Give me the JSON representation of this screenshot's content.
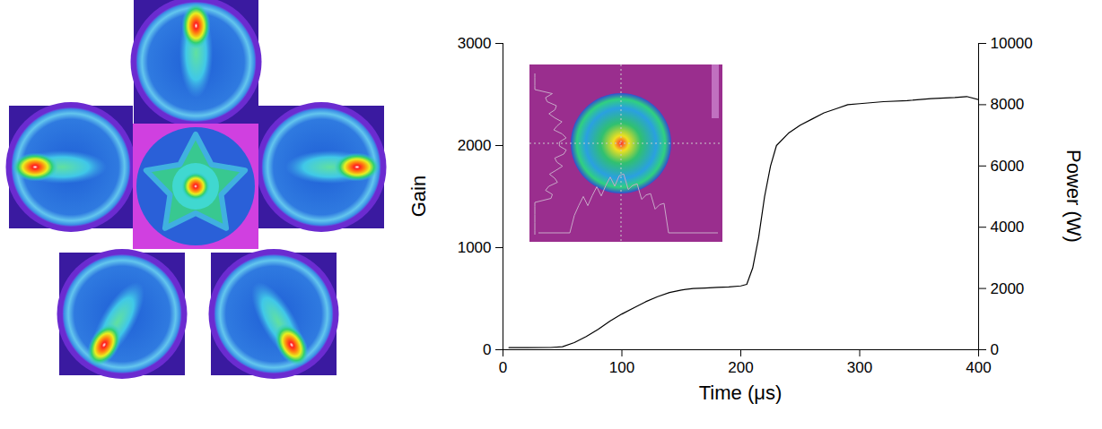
{
  "chart_data": {
    "type": "line",
    "x_label": "Time (μs)",
    "y_label": "Gain",
    "y2_label": "Power (W)",
    "x": [
      5,
      20,
      40,
      50,
      60,
      70,
      80,
      90,
      100,
      110,
      120,
      130,
      140,
      150,
      160,
      170,
      180,
      190,
      200,
      205,
      210,
      215,
      220,
      225,
      230,
      240,
      250,
      260,
      270,
      280,
      290,
      300,
      320,
      340,
      360,
      380,
      390,
      400
    ],
    "values": [
      20,
      20,
      22,
      30,
      70,
      130,
      200,
      280,
      350,
      410,
      470,
      520,
      560,
      585,
      600,
      605,
      610,
      615,
      625,
      640,
      800,
      1100,
      1500,
      1800,
      2000,
      2120,
      2200,
      2260,
      2320,
      2360,
      2400,
      2410,
      2430,
      2440,
      2460,
      2470,
      2480,
      2450
    ],
    "color": "#000000",
    "xlim": [
      0,
      400
    ],
    "xticks": [
      0,
      100,
      200,
      300,
      400
    ],
    "ylim": [
      0,
      3000
    ],
    "yticks": [
      0,
      1000,
      2000,
      3000
    ],
    "y2lim": [
      0,
      10000
    ],
    "y2ticks": [
      0,
      2000,
      4000,
      6000,
      8000,
      10000
    ]
  }
}
